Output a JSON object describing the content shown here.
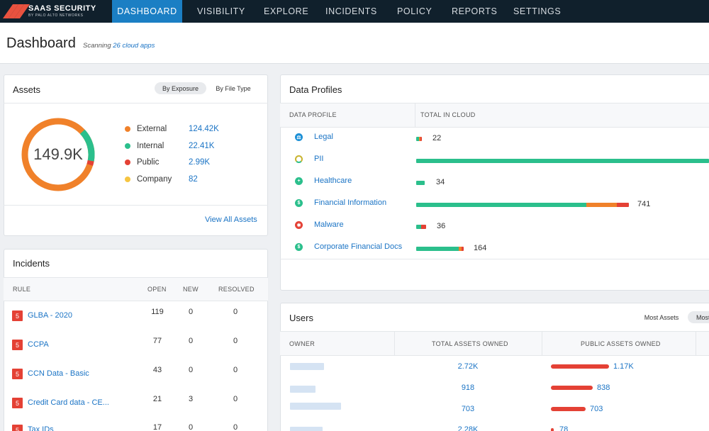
{
  "nav": {
    "brand_title": "SAAS SECURITY",
    "brand_sub": "BY PALO ALTO NETWORKS",
    "tabs": [
      "DASHBOARD",
      "VISIBILITY",
      "EXPLORE",
      "INCIDENTS",
      "POLICY",
      "REPORTS",
      "SETTINGS"
    ],
    "active_tab": "DASHBOARD"
  },
  "header": {
    "title": "Dashboard",
    "scan_prefix": "Scanning ",
    "scan_count": "26 cloud apps"
  },
  "assets": {
    "title": "Assets",
    "toggle": [
      "By Exposure",
      "By File Type"
    ],
    "total": "149.9K",
    "rows": [
      {
        "label": "External",
        "value": "124.42K",
        "color": "#f0812a"
      },
      {
        "label": "Internal",
        "value": "22.41K",
        "color": "#2bbf8c"
      },
      {
        "label": "Public",
        "value": "2.99K",
        "color": "#e44135"
      },
      {
        "label": "Company",
        "value": "82",
        "color": "#f6c542"
      }
    ],
    "view_all": "View All Assets"
  },
  "incidents": {
    "title": "Incidents",
    "columns": [
      "RULE",
      "OPEN",
      "NEW",
      "RESOLVED"
    ],
    "rows": [
      {
        "sev": "5",
        "rule": "GLBA - 2020",
        "open": "119",
        "new": "0",
        "resolved": "0"
      },
      {
        "sev": "5",
        "rule": "CCPA",
        "open": "77",
        "new": "0",
        "resolved": "0"
      },
      {
        "sev": "5",
        "rule": "CCN Data - Basic",
        "open": "43",
        "new": "0",
        "resolved": "0"
      },
      {
        "sev": "5",
        "rule": "Credit Card data - CE...",
        "open": "21",
        "new": "3",
        "resolved": "0"
      },
      {
        "sev": "5",
        "rule": "Tax IDs",
        "open": "17",
        "new": "0",
        "resolved": "0"
      }
    ]
  },
  "data_profiles": {
    "title": "Data Profiles",
    "columns": [
      "DATA PROFILE",
      "TOTAL IN CLOUD"
    ],
    "rows": [
      {
        "name": "Legal",
        "count": "22",
        "icon": "gavel-icon",
        "icon_color": "#1b8fd6",
        "segments": [
          {
            "color": "#2bbf8c",
            "frac": 0.01
          },
          {
            "color": "#f0812a",
            "frac": 0.006
          },
          {
            "color": "#e44135",
            "frac": 0.003
          }
        ]
      },
      {
        "name": "PII",
        "count": "",
        "icon": "person-icon",
        "icon_color": "#c9b430",
        "segments": [
          {
            "color": "#2bbf8c",
            "frac": 1.0
          }
        ]
      },
      {
        "name": "Healthcare",
        "count": "34",
        "icon": "health-icon",
        "icon_color": "#2bbf8c",
        "segments": [
          {
            "color": "#2bbf8c",
            "frac": 0.028
          }
        ]
      },
      {
        "name": "Financial Information",
        "count": "741",
        "icon": "dollar-icon",
        "icon_color": "#2bbf8c",
        "segments": [
          {
            "color": "#2bbf8c",
            "frac": 0.58
          },
          {
            "color": "#f0812a",
            "frac": 0.105
          },
          {
            "color": "#e44135",
            "frac": 0.04
          }
        ]
      },
      {
        "name": "Malware",
        "count": "36",
        "icon": "bug-icon",
        "icon_color": "#e44135",
        "segments": [
          {
            "color": "#2bbf8c",
            "frac": 0.018
          },
          {
            "color": "#e44135",
            "frac": 0.016
          }
        ]
      },
      {
        "name": "Corporate Financial Docs",
        "count": "164",
        "icon": "dollar-icon",
        "icon_color": "#2bbf8c",
        "segments": [
          {
            "color": "#2bbf8c",
            "frac": 0.145
          },
          {
            "color": "#f0812a",
            "frac": 0.01
          },
          {
            "color": "#e44135",
            "frac": 0.007
          }
        ]
      }
    ]
  },
  "users": {
    "title": "Users",
    "toggle": [
      "Most Assets",
      "Most"
    ],
    "columns": [
      "OWNER",
      "TOTAL ASSETS OWNED",
      "PUBLIC ASSETS OWNED"
    ],
    "rows": [
      {
        "total": "2.72K",
        "public": "1.17K",
        "public_frac": 1.0
      },
      {
        "total": "918",
        "public": "838",
        "public_frac": 0.72
      },
      {
        "total": "703",
        "public": "703",
        "public_frac": 0.6
      },
      {
        "total": "2.28K",
        "public": "78",
        "public_frac": 0.05
      }
    ]
  }
}
